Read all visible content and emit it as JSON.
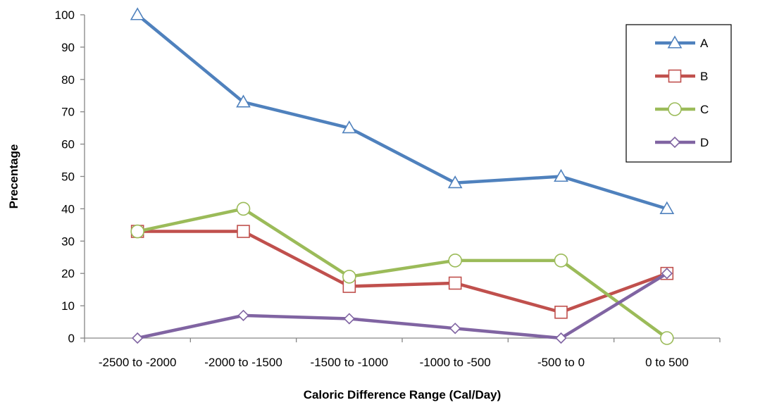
{
  "chart_data": {
    "type": "line",
    "title": "",
    "xlabel": "Caloric Difference Range  (Cal/Day)",
    "ylabel": "Precentage",
    "categories": [
      "-2500 to -2000",
      "-2000 to -1500",
      "-1500 to -1000",
      "-1000 to -500",
      "-500 to 0",
      "0 to 500"
    ],
    "ylim": [
      0,
      100
    ],
    "yticks": [
      "0",
      "10",
      "20",
      "30",
      "40",
      "50",
      "60",
      "70",
      "80",
      "90",
      "100"
    ],
    "grid": false,
    "legend_position": "top-right",
    "series": [
      {
        "name": "A",
        "values": [
          100,
          73,
          65,
          48,
          50,
          40
        ],
        "color": "#4f81bd",
        "marker": "triangle"
      },
      {
        "name": "B",
        "values": [
          33,
          33,
          16,
          17,
          8,
          20
        ],
        "color": "#c0504d",
        "marker": "square"
      },
      {
        "name": "C",
        "values": [
          33,
          40,
          19,
          24,
          24,
          0
        ],
        "color": "#9bbb59",
        "marker": "circle"
      },
      {
        "name": "D",
        "values": [
          0,
          7,
          6,
          3,
          0,
          20
        ],
        "color": "#8064a2",
        "marker": "diamond"
      }
    ]
  }
}
